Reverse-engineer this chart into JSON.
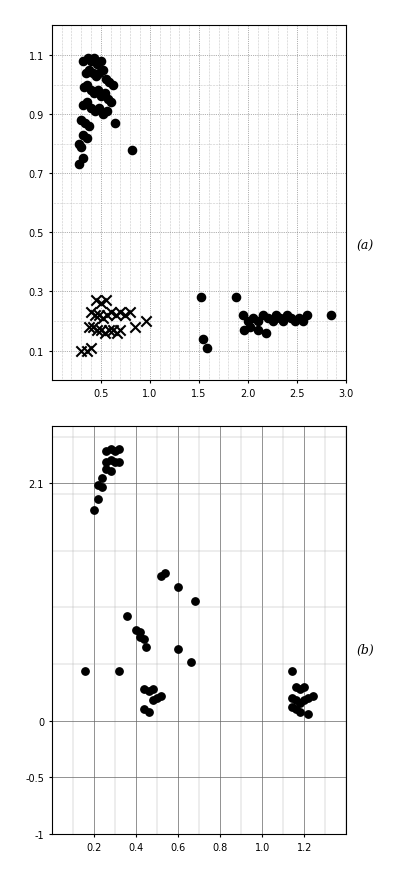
{
  "chart_a": {
    "dots": [
      [
        0.32,
        1.08
      ],
      [
        0.37,
        1.09
      ],
      [
        0.4,
        1.08
      ],
      [
        0.43,
        1.09
      ],
      [
        0.46,
        1.07
      ],
      [
        0.5,
        1.08
      ],
      [
        0.35,
        1.04
      ],
      [
        0.38,
        1.05
      ],
      [
        0.42,
        1.04
      ],
      [
        0.45,
        1.03
      ],
      [
        0.48,
        1.04
      ],
      [
        0.52,
        1.05
      ],
      [
        0.55,
        1.02
      ],
      [
        0.58,
        1.01
      ],
      [
        0.62,
        1.0
      ],
      [
        0.33,
        0.99
      ],
      [
        0.36,
        1.0
      ],
      [
        0.4,
        0.98
      ],
      [
        0.43,
        0.97
      ],
      [
        0.47,
        0.98
      ],
      [
        0.5,
        0.96
      ],
      [
        0.54,
        0.97
      ],
      [
        0.57,
        0.95
      ],
      [
        0.6,
        0.94
      ],
      [
        0.32,
        0.93
      ],
      [
        0.36,
        0.94
      ],
      [
        0.4,
        0.92
      ],
      [
        0.44,
        0.91
      ],
      [
        0.48,
        0.92
      ],
      [
        0.52,
        0.9
      ],
      [
        0.56,
        0.91
      ],
      [
        0.3,
        0.88
      ],
      [
        0.34,
        0.87
      ],
      [
        0.38,
        0.86
      ],
      [
        0.32,
        0.83
      ],
      [
        0.36,
        0.82
      ],
      [
        0.28,
        0.8
      ],
      [
        0.3,
        0.79
      ],
      [
        0.32,
        0.75
      ],
      [
        0.28,
        0.73
      ],
      [
        0.82,
        0.78
      ],
      [
        0.64,
        0.87
      ],
      [
        1.88,
        0.28
      ],
      [
        1.95,
        0.22
      ],
      [
        2.0,
        0.2
      ],
      [
        2.05,
        0.21
      ],
      [
        2.1,
        0.2
      ],
      [
        2.15,
        0.22
      ],
      [
        2.2,
        0.21
      ],
      [
        2.25,
        0.2
      ],
      [
        2.28,
        0.22
      ],
      [
        2.32,
        0.21
      ],
      [
        2.36,
        0.2
      ],
      [
        2.4,
        0.22
      ],
      [
        2.44,
        0.21
      ],
      [
        2.48,
        0.2
      ],
      [
        2.52,
        0.21
      ],
      [
        2.56,
        0.2
      ],
      [
        2.6,
        0.22
      ],
      [
        1.96,
        0.17
      ],
      [
        2.02,
        0.18
      ],
      [
        2.1,
        0.17
      ],
      [
        2.18,
        0.16
      ],
      [
        2.84,
        0.22
      ],
      [
        1.54,
        0.14
      ],
      [
        1.58,
        0.11
      ],
      [
        1.52,
        0.28
      ]
    ],
    "crosses": [
      [
        0.45,
        0.27
      ],
      [
        0.5,
        0.26
      ],
      [
        0.55,
        0.27
      ],
      [
        0.4,
        0.23
      ],
      [
        0.44,
        0.22
      ],
      [
        0.48,
        0.22
      ],
      [
        0.52,
        0.21
      ],
      [
        0.56,
        0.22
      ],
      [
        0.6,
        0.23
      ],
      [
        0.65,
        0.22
      ],
      [
        0.7,
        0.23
      ],
      [
        0.75,
        0.22
      ],
      [
        0.8,
        0.23
      ],
      [
        0.38,
        0.18
      ],
      [
        0.42,
        0.18
      ],
      [
        0.46,
        0.17
      ],
      [
        0.5,
        0.17
      ],
      [
        0.54,
        0.16
      ],
      [
        0.58,
        0.17
      ],
      [
        0.62,
        0.17
      ],
      [
        0.66,
        0.16
      ],
      [
        0.7,
        0.17
      ],
      [
        0.85,
        0.18
      ],
      [
        0.96,
        0.2
      ],
      [
        0.36,
        0.1
      ],
      [
        0.4,
        0.11
      ],
      [
        0.3,
        0.1
      ]
    ],
    "xlim": [
      0.0,
      3.0
    ],
    "ylim": [
      0.0,
      1.2
    ],
    "xticks": [
      0.5,
      1.0,
      1.5,
      2.0,
      2.5,
      3.0
    ],
    "yticks": [
      0.1,
      0.3,
      0.5,
      0.7,
      0.9,
      1.1
    ],
    "label": "(a)"
  },
  "chart_b": {
    "dots": [
      [
        0.26,
        2.38
      ],
      [
        0.28,
        2.4
      ],
      [
        0.3,
        2.38
      ],
      [
        0.32,
        2.4
      ],
      [
        0.26,
        2.28
      ],
      [
        0.28,
        2.3
      ],
      [
        0.3,
        2.28
      ],
      [
        0.32,
        2.28
      ],
      [
        0.26,
        2.22
      ],
      [
        0.28,
        2.2
      ],
      [
        0.24,
        2.14
      ],
      [
        0.22,
        2.08
      ],
      [
        0.24,
        2.06
      ],
      [
        0.22,
        1.96
      ],
      [
        0.2,
        1.86
      ],
      [
        0.52,
        1.28
      ],
      [
        0.54,
        1.3
      ],
      [
        0.36,
        0.92
      ],
      [
        0.4,
        0.8
      ],
      [
        0.42,
        0.78
      ],
      [
        0.42,
        0.74
      ],
      [
        0.44,
        0.72
      ],
      [
        0.45,
        0.65
      ],
      [
        0.6,
        0.63
      ],
      [
        0.6,
        1.18
      ],
      [
        0.68,
        1.06
      ],
      [
        0.66,
        0.52
      ],
      [
        0.16,
        0.44
      ],
      [
        0.44,
        0.28
      ],
      [
        0.46,
        0.26
      ],
      [
        0.48,
        0.28
      ],
      [
        0.5,
        0.2
      ],
      [
        0.48,
        0.18
      ],
      [
        0.52,
        0.22
      ],
      [
        0.44,
        0.1
      ],
      [
        0.46,
        0.08
      ],
      [
        0.32,
        0.44
      ],
      [
        1.14,
        0.44
      ],
      [
        1.16,
        0.3
      ],
      [
        1.18,
        0.28
      ],
      [
        1.2,
        0.3
      ],
      [
        1.14,
        0.2
      ],
      [
        1.16,
        0.18
      ],
      [
        1.18,
        0.16
      ],
      [
        1.2,
        0.18
      ],
      [
        1.22,
        0.2
      ],
      [
        1.24,
        0.22
      ],
      [
        1.14,
        0.12
      ],
      [
        1.16,
        0.1
      ],
      [
        1.18,
        0.08
      ],
      [
        1.22,
        0.06
      ]
    ],
    "xlim": [
      0.0,
      1.4
    ],
    "ylim": [
      -0.4,
      2.6
    ],
    "xticks": [
      0.2,
      0.4,
      0.6,
      0.8,
      1.0,
      1.2
    ],
    "ytick_vals": [
      -0.5,
      0.0,
      -1.0,
      2.1
    ],
    "ytick_positions": [
      -0.3,
      0.5,
      -0.5,
      2.1
    ],
    "label": "(b)"
  },
  "dot_color": "#000000",
  "bg_color": "#ffffff",
  "dot_size_a": 35,
  "dot_size_b": 28,
  "cross_size": 55
}
